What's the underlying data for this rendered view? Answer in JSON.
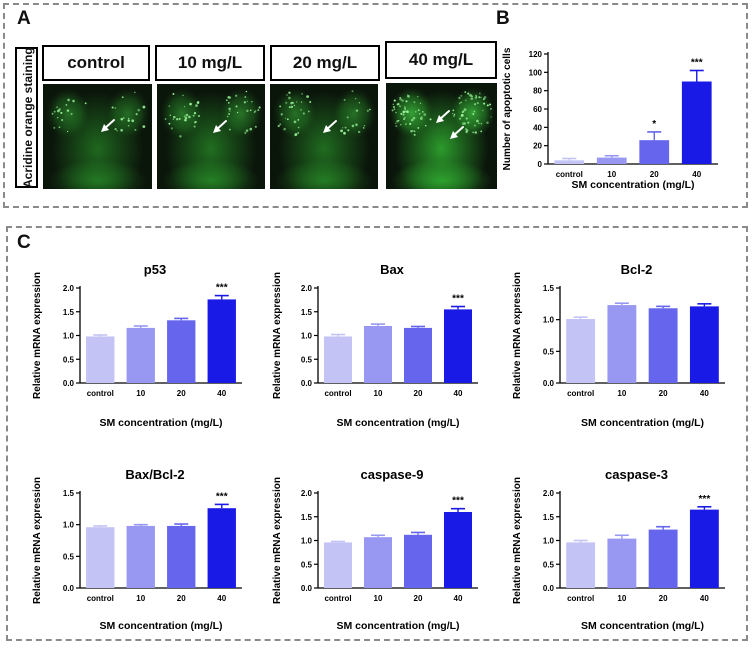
{
  "panels": {
    "a": "A",
    "b": "B",
    "c": "C"
  },
  "panel_a": {
    "row_label": "Acridine orange staining",
    "conditions": [
      "control",
      "10 mg/L",
      "20 mg/L",
      "40 mg/L"
    ]
  },
  "colors": {
    "control": "#c3c3f5",
    "c10": "#9898f2",
    "c20": "#6565ee",
    "c40": "#1a1ae6",
    "stain_green": "#2faa2f",
    "frame": "#8a8a8a"
  },
  "chart_data": [
    {
      "type": "bar",
      "id": "apoptotic",
      "title": "",
      "xlabel": "SM concentration (mg/L)",
      "ylabel": "Number of apoptotic cells",
      "categories": [
        "control",
        "10",
        "20",
        "40"
      ],
      "values": [
        4,
        7,
        26,
        90
      ],
      "errors": [
        2,
        2,
        9,
        12
      ],
      "significance": [
        "",
        "",
        "*",
        "***"
      ],
      "ylim": [
        0,
        120
      ],
      "yticks": [
        0,
        20,
        40,
        60,
        80,
        100,
        120
      ],
      "ytick_labels": [
        "0",
        "20",
        "40",
        "60",
        "80",
        "100",
        "120"
      ]
    },
    {
      "type": "bar",
      "id": "p53",
      "title": "p53",
      "xlabel": "SM concentration (mg/L)",
      "ylabel": "Relative mRNA expression",
      "categories": [
        "control",
        "10",
        "20",
        "40"
      ],
      "values": [
        0.98,
        1.16,
        1.32,
        1.76
      ],
      "errors": [
        0.03,
        0.04,
        0.04,
        0.08
      ],
      "significance": [
        "",
        "",
        "",
        "***"
      ],
      "ylim": [
        0,
        2.0
      ],
      "yticks": [
        0,
        0.5,
        1.0,
        1.5,
        2.0
      ],
      "ytick_labels": [
        "0.0",
        "0.5",
        "1.0",
        "1.5",
        "2.0"
      ]
    },
    {
      "type": "bar",
      "id": "bax",
      "title": "Bax",
      "xlabel": "SM concentration (mg/L)",
      "ylabel": "Relative mRNA expression",
      "categories": [
        "control",
        "10",
        "20",
        "40"
      ],
      "values": [
        0.98,
        1.2,
        1.16,
        1.55
      ],
      "errors": [
        0.04,
        0.04,
        0.03,
        0.06
      ],
      "significance": [
        "",
        "",
        "",
        "***"
      ],
      "ylim": [
        0,
        2.0
      ],
      "yticks": [
        0,
        0.5,
        1.0,
        1.5,
        2.0
      ],
      "ytick_labels": [
        "0.0",
        "0.5",
        "1.0",
        "1.5",
        "2.0"
      ]
    },
    {
      "type": "bar",
      "id": "bcl2",
      "title": "Bcl-2",
      "xlabel": "SM concentration (mg/L)",
      "ylabel": "Relative mRNA expression",
      "categories": [
        "control",
        "10",
        "20",
        "40"
      ],
      "values": [
        1.01,
        1.23,
        1.18,
        1.21
      ],
      "errors": [
        0.03,
        0.03,
        0.03,
        0.04
      ],
      "significance": [
        "",
        "",
        "",
        ""
      ],
      "ylim": [
        0,
        1.5
      ],
      "yticks": [
        0,
        0.5,
        1.0,
        1.5
      ],
      "ytick_labels": [
        "0.0",
        "0.5",
        "1.0",
        "1.5"
      ]
    },
    {
      "type": "bar",
      "id": "bax_bcl2",
      "title": "Bax/Bcl-2",
      "xlabel": "SM concentration (mg/L)",
      "ylabel": "Relative mRNA expression",
      "categories": [
        "control",
        "10",
        "20",
        "40"
      ],
      "values": [
        0.96,
        0.98,
        0.98,
        1.26
      ],
      "errors": [
        0.02,
        0.02,
        0.03,
        0.06
      ],
      "significance": [
        "",
        "",
        "",
        "***"
      ],
      "ylim": [
        0,
        1.5
      ],
      "yticks": [
        0,
        0.5,
        1.0,
        1.5
      ],
      "ytick_labels": [
        "0.0",
        "0.5",
        "1.0",
        "1.5"
      ]
    },
    {
      "type": "bar",
      "id": "caspase9",
      "title": "caspase-9",
      "xlabel": "SM concentration (mg/L)",
      "ylabel": "Relative mRNA expression",
      "categories": [
        "control",
        "10",
        "20",
        "40"
      ],
      "values": [
        0.96,
        1.07,
        1.12,
        1.6
      ],
      "errors": [
        0.02,
        0.04,
        0.05,
        0.07
      ],
      "significance": [
        "",
        "",
        "",
        "***"
      ],
      "ylim": [
        0,
        2.0
      ],
      "yticks": [
        0,
        0.5,
        1.0,
        1.5,
        2.0
      ],
      "ytick_labels": [
        "0.0",
        "0.5",
        "1.0",
        "1.5",
        "2.0"
      ]
    },
    {
      "type": "bar",
      "id": "caspase3",
      "title": "caspase-3",
      "xlabel": "SM concentration (mg/L)",
      "ylabel": "Relative mRNA expression",
      "categories": [
        "control",
        "10",
        "20",
        "40"
      ],
      "values": [
        0.96,
        1.04,
        1.23,
        1.65
      ],
      "errors": [
        0.04,
        0.07,
        0.06,
        0.06
      ],
      "significance": [
        "",
        "",
        "",
        "***"
      ],
      "ylim": [
        0,
        2.0
      ],
      "yticks": [
        0,
        0.5,
        1.0,
        1.5,
        2.0
      ],
      "ytick_labels": [
        "0.0",
        "0.5",
        "1.0",
        "1.5",
        "2.0"
      ]
    }
  ]
}
